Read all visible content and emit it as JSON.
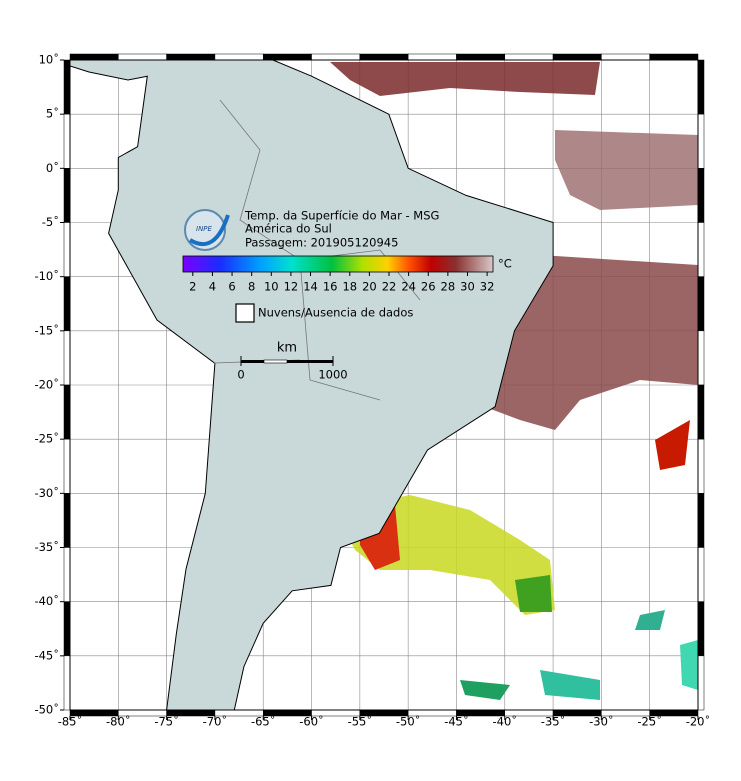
{
  "map": {
    "xlim": [
      -85,
      -20
    ],
    "ylim": [
      -50,
      10
    ],
    "xticks": [
      {
        "value": -85,
        "label": "-85˚"
      },
      {
        "value": -80,
        "label": "-80˚"
      },
      {
        "value": -75,
        "label": "-75˚"
      },
      {
        "value": -70,
        "label": "-70˚"
      },
      {
        "value": -65,
        "label": "-65˚"
      },
      {
        "value": -60,
        "label": "-60˚"
      },
      {
        "value": -55,
        "label": "-55˚"
      },
      {
        "value": -50,
        "label": "-50˚"
      },
      {
        "value": -45,
        "label": "-45˚"
      },
      {
        "value": -40,
        "label": "-40˚"
      },
      {
        "value": -35,
        "label": "-35˚"
      },
      {
        "value": -30,
        "label": "-30˚"
      },
      {
        "value": -25,
        "label": "-25˚"
      },
      {
        "value": -20,
        "label": "-20˚"
      }
    ],
    "yticks": [
      {
        "value": 10,
        "label": "10˚"
      },
      {
        "value": 5,
        "label": "5˚"
      },
      {
        "value": 0,
        "label": "0˚"
      },
      {
        "value": -5,
        "label": "-5˚"
      },
      {
        "value": -10,
        "label": "-10˚"
      },
      {
        "value": -15,
        "label": "-15˚"
      },
      {
        "value": -20,
        "label": "-20˚"
      },
      {
        "value": -25,
        "label": "-25˚"
      },
      {
        "value": -30,
        "label": "-30˚"
      },
      {
        "value": -35,
        "label": "-35˚"
      },
      {
        "value": -40,
        "label": "-40˚"
      },
      {
        "value": -45,
        "label": "-45˚"
      },
      {
        "value": -50,
        "label": "-50˚"
      }
    ],
    "grid": true
  },
  "legend": {
    "logo": "INPE",
    "title": "Temp. da Superfície do Mar - MSG",
    "region": "América do Sul",
    "pass": "Passagem: 201905120945",
    "unit": "°C",
    "colorbar": {
      "lim": [
        1,
        32.6
      ],
      "ticks": [
        2,
        4,
        6,
        8,
        10,
        12,
        14,
        16,
        18,
        20,
        22,
        24,
        26,
        28,
        30,
        32
      ]
    },
    "clouds": "Nuvens/Ausencia de dados",
    "scale_bar": {
      "unit": "km",
      "ticks": [
        0,
        1000
      ]
    }
  }
}
